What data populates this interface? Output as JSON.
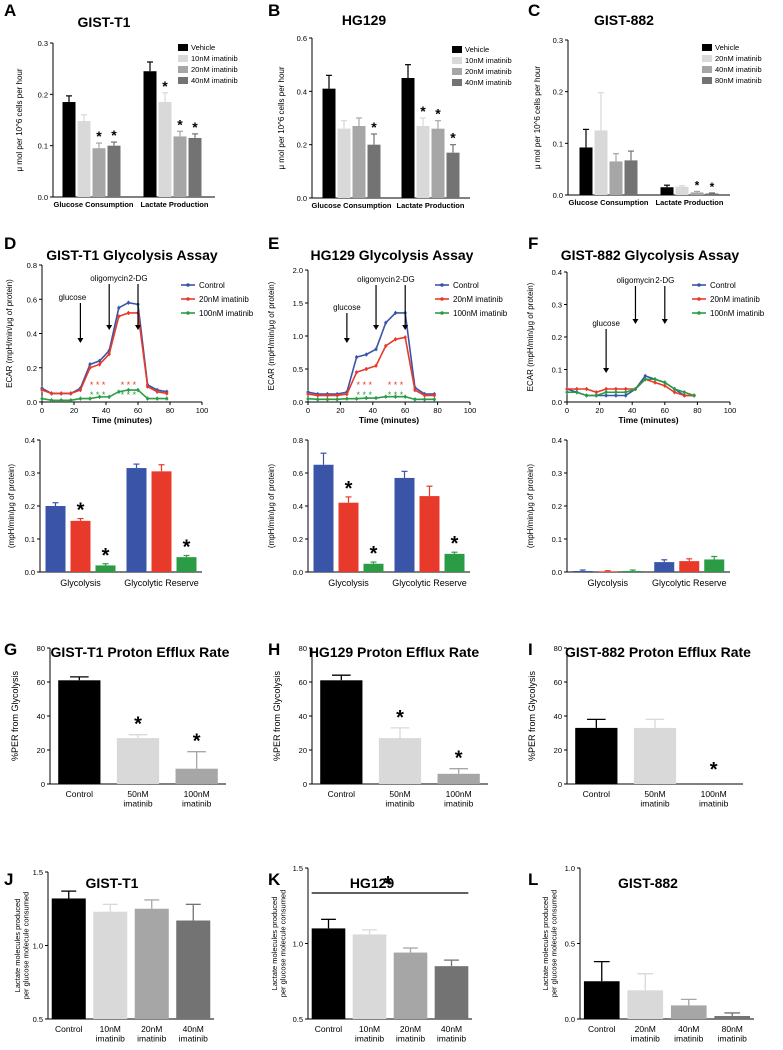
{
  "colors": {
    "black": "#000000",
    "gray1": "#d9d9d9",
    "gray2": "#a6a6a6",
    "gray3": "#737373",
    "blue": "#3a55a8",
    "red": "#e83a2b",
    "green": "#2b9c45"
  },
  "chart_data": [
    {
      "id": "A",
      "type": "bar",
      "title": "GIST-T1",
      "ylabel": "μ mol per 10^6 cells per hour",
      "ylim": [
        0,
        0.3
      ],
      "yticks": [
        "0.0",
        "0.1",
        "0.2",
        "0.3"
      ],
      "categories": [
        "Glucose Consumption",
        "Lactate Production"
      ],
      "series": [
        {
          "name": "Vehicle",
          "values": [
            0.185,
            0.245
          ],
          "err": [
            0.012,
            0.018
          ],
          "sig": [
            false,
            false
          ]
        },
        {
          "name": "10nM imatinib",
          "values": [
            0.148,
            0.185
          ],
          "err": [
            0.012,
            0.018
          ],
          "sig": [
            false,
            true
          ]
        },
        {
          "name": "20nM imatinib",
          "values": [
            0.095,
            0.118
          ],
          "err": [
            0.01,
            0.01
          ],
          "sig": [
            true,
            true
          ]
        },
        {
          "name": "40nM imatinib",
          "values": [
            0.1,
            0.115
          ],
          "err": [
            0.007,
            0.008
          ],
          "sig": [
            true,
            true
          ]
        }
      ]
    },
    {
      "id": "B",
      "type": "bar",
      "title": "HG129",
      "ylabel": "μ mol per 10^6 cells per hour",
      "ylim": [
        0,
        0.6
      ],
      "yticks": [
        "0.0",
        "0.2",
        "0.4",
        "0.6"
      ],
      "categories": [
        "Glucose Consumption",
        "Lactate Production"
      ],
      "series": [
        {
          "name": "Vehicle",
          "values": [
            0.41,
            0.45
          ],
          "err": [
            0.05,
            0.05
          ],
          "sig": [
            false,
            false
          ]
        },
        {
          "name": "10nM imatinib",
          "values": [
            0.26,
            0.27
          ],
          "err": [
            0.03,
            0.03
          ],
          "sig": [
            false,
            true
          ]
        },
        {
          "name": "20nM imatinib",
          "values": [
            0.27,
            0.26
          ],
          "err": [
            0.03,
            0.03
          ],
          "sig": [
            false,
            true
          ]
        },
        {
          "name": "40nM imatinib",
          "values": [
            0.2,
            0.17
          ],
          "err": [
            0.04,
            0.03
          ],
          "sig": [
            true,
            true
          ]
        }
      ]
    },
    {
      "id": "C",
      "type": "bar",
      "title": "GIST-882",
      "ylabel": "μ mol per 10^6 cells per hour",
      "ylim": [
        0,
        0.3
      ],
      "yticks": [
        "0.0",
        "0.1",
        "0.2",
        "0.3"
      ],
      "categories": [
        "Glucose Consumption",
        "Lactate Production"
      ],
      "series": [
        {
          "name": "Vehicle",
          "values": [
            0.092,
            0.015
          ],
          "err": [
            0.035,
            0.004
          ],
          "sig": [
            false,
            false
          ]
        },
        {
          "name": "20nM imatinib",
          "values": [
            0.125,
            0.016
          ],
          "err": [
            0.073,
            0.002
          ],
          "sig": [
            false,
            false
          ]
        },
        {
          "name": "40nM imatinib",
          "values": [
            0.065,
            0.005
          ],
          "err": [
            0.015,
            0.002
          ],
          "sig": [
            false,
            true
          ]
        },
        {
          "name": "80nM imatinib",
          "values": [
            0.067,
            0.003
          ],
          "err": [
            0.018,
            0.001
          ],
          "sig": [
            false,
            true
          ]
        }
      ]
    },
    {
      "id": "D",
      "type": "line",
      "title": "GIST-T1 Glycolysis Assay",
      "xlabel": "Time (minutes)",
      "ylabel": "ECAR (mpH/min/μg of protein)",
      "xlim": [
        0,
        100
      ],
      "xticks": [
        "0",
        "20",
        "40",
        "60",
        "80",
        "100"
      ],
      "ylim": [
        0,
        0.8
      ],
      "yticks": [
        "0.0",
        "0.2",
        "0.4",
        "0.6",
        "0.8"
      ],
      "x": [
        0,
        6,
        12,
        18,
        24,
        30,
        36,
        42,
        48,
        54,
        60,
        66,
        72,
        78
      ],
      "series": [
        {
          "name": "Control",
          "values": [
            0.08,
            0.05,
            0.05,
            0.05,
            0.08,
            0.22,
            0.24,
            0.3,
            0.55,
            0.58,
            0.57,
            0.1,
            0.07,
            0.06
          ]
        },
        {
          "name": "20nM imatinib",
          "values": [
            0.07,
            0.05,
            0.05,
            0.05,
            0.07,
            0.2,
            0.22,
            0.28,
            0.5,
            0.52,
            0.52,
            0.09,
            0.06,
            0.05
          ]
        },
        {
          "name": "100nM imatinib",
          "values": [
            0.02,
            0.01,
            0.01,
            0.01,
            0.02,
            0.02,
            0.03,
            0.03,
            0.06,
            0.07,
            0.07,
            0.02,
            0.02,
            0.02
          ]
        }
      ],
      "annotations": [
        {
          "label": "glucose",
          "x": 24
        },
        {
          "label": "oligomycin",
          "x": 42
        },
        {
          "label": "2-DG",
          "x": 60
        }
      ],
      "stars": [
        "* * *",
        "* * *",
        "* * *"
      ]
    },
    {
      "id": "E",
      "type": "line",
      "title": "HG129 Glycolysis Assay",
      "xlabel": "Time (minutes)",
      "ylabel": "ECAR (mpH/min/μg of protein)",
      "xlim": [
        0,
        100
      ],
      "xticks": [
        "0",
        "20",
        "40",
        "60",
        "80",
        "100"
      ],
      "ylim": [
        0,
        2.0
      ],
      "yticks": [
        "0.0",
        "0.5",
        "1.0",
        "1.5",
        "2.0"
      ],
      "x": [
        0,
        6,
        12,
        18,
        24,
        30,
        36,
        42,
        48,
        54,
        60,
        66,
        72,
        78
      ],
      "series": [
        {
          "name": "Control",
          "values": [
            0.15,
            0.12,
            0.12,
            0.12,
            0.15,
            0.68,
            0.72,
            0.8,
            1.2,
            1.35,
            1.35,
            0.22,
            0.12,
            0.12
          ]
        },
        {
          "name": "20nM imatinib",
          "values": [
            0.12,
            0.1,
            0.1,
            0.1,
            0.12,
            0.45,
            0.5,
            0.55,
            0.85,
            0.95,
            0.98,
            0.18,
            0.1,
            0.1
          ]
        },
        {
          "name": "100nM imatinib",
          "values": [
            0.05,
            0.04,
            0.04,
            0.04,
            0.05,
            0.05,
            0.06,
            0.06,
            0.08,
            0.08,
            0.08,
            0.04,
            0.04,
            0.04
          ]
        }
      ],
      "annotations": [
        {
          "label": "glucose",
          "x": 24
        },
        {
          "label": "oligomycin",
          "x": 42
        },
        {
          "label": "2-DG",
          "x": 60
        }
      ],
      "stars": [
        "* * *",
        "* * *",
        "* * *"
      ]
    },
    {
      "id": "F",
      "type": "line",
      "title": "GIST-882 Glycolysis Assay",
      "xlabel": "Time (minutes)",
      "ylabel": "ECAR (mpH/min/μg of protein)",
      "xlim": [
        0,
        100
      ],
      "xticks": [
        "0",
        "20",
        "40",
        "60",
        "80",
        "100"
      ],
      "ylim": [
        0,
        0.4
      ],
      "yticks": [
        "0.0",
        "0.1",
        "0.2",
        "0.3",
        "0.4"
      ],
      "x": [
        0,
        6,
        12,
        18,
        24,
        30,
        36,
        42,
        48,
        54,
        60,
        66,
        72,
        78
      ],
      "series": [
        {
          "name": "Control",
          "values": [
            0.04,
            0.03,
            0.02,
            0.02,
            0.02,
            0.02,
            0.02,
            0.04,
            0.08,
            0.07,
            0.06,
            0.04,
            0.02,
            0.02
          ]
        },
        {
          "name": "20nM imatinib",
          "values": [
            0.04,
            0.04,
            0.04,
            0.03,
            0.04,
            0.04,
            0.04,
            0.04,
            0.07,
            0.06,
            0.05,
            0.03,
            0.02,
            0.02
          ]
        },
        {
          "name": "100nM imatinib",
          "values": [
            0.03,
            0.03,
            0.02,
            0.02,
            0.03,
            0.03,
            0.03,
            0.04,
            0.07,
            0.07,
            0.06,
            0.04,
            0.03,
            0.02
          ]
        }
      ],
      "annotations": [
        {
          "label": "glucose",
          "x": 24
        },
        {
          "label": "oligomycin",
          "x": 42
        },
        {
          "label": "2-DG",
          "x": 60
        }
      ]
    },
    {
      "id": "D2",
      "type": "bar",
      "ylabel": "(mpH/min/μg of protein)",
      "ylim": [
        0,
        0.4
      ],
      "yticks": [
        "0.0",
        "0.1",
        "0.2",
        "0.3",
        "0.4"
      ],
      "categories": [
        "Glycolysis",
        "Glycolytic Reserve"
      ],
      "series": [
        {
          "name": "Control",
          "values": [
            0.2,
            0.315
          ],
          "err": [
            0.01,
            0.012
          ],
          "sig": [
            false,
            false
          ]
        },
        {
          "name": "20nM imatinib",
          "values": [
            0.155,
            0.305
          ],
          "err": [
            0.007,
            0.02
          ],
          "sig": [
            true,
            false
          ]
        },
        {
          "name": "100nM imatinib",
          "values": [
            0.02,
            0.045
          ],
          "err": [
            0.005,
            0.005
          ],
          "sig": [
            true,
            true
          ]
        }
      ]
    },
    {
      "id": "E2",
      "type": "bar",
      "ylabel": "(mpH/min/μg of protein)",
      "ylim": [
        0,
        0.8
      ],
      "yticks": [
        "0.0",
        "0.2",
        "0.4",
        "0.6",
        "0.8"
      ],
      "categories": [
        "Glycolysis",
        "Glycolytic Reserve"
      ],
      "series": [
        {
          "name": "Control",
          "values": [
            0.65,
            0.57
          ],
          "err": [
            0.07,
            0.04
          ],
          "sig": [
            false,
            false
          ]
        },
        {
          "name": "20nM imatinib",
          "values": [
            0.42,
            0.46
          ],
          "err": [
            0.035,
            0.06
          ],
          "sig": [
            true,
            false
          ]
        },
        {
          "name": "100nM imatinib",
          "values": [
            0.05,
            0.11
          ],
          "err": [
            0.01,
            0.01
          ],
          "sig": [
            true,
            true
          ]
        }
      ]
    },
    {
      "id": "F2",
      "type": "bar",
      "ylabel": "(mpH/min/μg of protein)",
      "ylim": [
        0,
        0.4
      ],
      "yticks": [
        "0.0",
        "0.1",
        "0.2",
        "0.3",
        "0.4"
      ],
      "categories": [
        "Glycolysis",
        "Glycolytic Reserve"
      ],
      "series": [
        {
          "name": "Control",
          "values": [
            0.003,
            0.03
          ],
          "err": [
            0.003,
            0.007
          ],
          "sig": [
            false,
            false
          ]
        },
        {
          "name": "20nM imatinib",
          "values": [
            0.002,
            0.033
          ],
          "err": [
            0.002,
            0.007
          ],
          "sig": [
            false,
            false
          ]
        },
        {
          "name": "100nM imatinib",
          "values": [
            0.003,
            0.038
          ],
          "err": [
            0.003,
            0.009
          ],
          "sig": [
            false,
            false
          ]
        }
      ]
    },
    {
      "id": "G",
      "type": "bar",
      "title": "GIST-T1 Proton Efflux Rate",
      "ylabel": "%PER from Glycolysis",
      "ylim": [
        0,
        80
      ],
      "yticks": [
        "0",
        "20",
        "40",
        "60",
        "80"
      ],
      "categories": [
        "Control",
        "50nM\nimatinib",
        "100nM\nimatinib"
      ],
      "values": [
        61,
        27,
        9
      ],
      "err": [
        2,
        2,
        10
      ],
      "sig": [
        false,
        true,
        true
      ]
    },
    {
      "id": "H",
      "type": "bar",
      "title": "HG129 Proton Efflux Rate",
      "ylabel": "%PER from Glycolysis",
      "ylim": [
        0,
        80
      ],
      "yticks": [
        "0",
        "20",
        "40",
        "60",
        "80"
      ],
      "categories": [
        "Control",
        "50nM\nimatinib",
        "100nM\nimatinib"
      ],
      "values": [
        61,
        27,
        6
      ],
      "err": [
        3,
        6,
        3
      ],
      "sig": [
        false,
        true,
        true
      ]
    },
    {
      "id": "I",
      "type": "bar",
      "title": "GIST-882 Proton Efflux Rate",
      "ylabel": "%PER from Glycolysis",
      "ylim": [
        0,
        80
      ],
      "yticks": [
        "0",
        "20",
        "40",
        "60",
        "80"
      ],
      "categories": [
        "Control",
        "50nM\nimatinib",
        "100nM\nimatinib"
      ],
      "values": [
        33,
        33,
        0
      ],
      "err": [
        5,
        5,
        0
      ],
      "sig": [
        false,
        false,
        true
      ]
    },
    {
      "id": "J",
      "type": "bar",
      "title": "GIST-T1",
      "ylabel": "Lactate molecules produced\nper glucose molecule consumed",
      "ylim": [
        0.5,
        1.5
      ],
      "ybase": 0.5,
      "yticks": [
        "0.5",
        "1.0",
        "1.5"
      ],
      "categories": [
        "Control",
        "10nM\nimatinib",
        "20nM\nimatinib",
        "40nM\nimatinib"
      ],
      "values": [
        1.32,
        1.23,
        1.25,
        1.17
      ],
      "err": [
        0.05,
        0.05,
        0.06,
        0.11
      ],
      "sig": [
        false,
        false,
        false,
        false
      ]
    },
    {
      "id": "K",
      "type": "bar",
      "title": "HG129",
      "ylabel": "Lactate molecules produced\nper glucose molecule consumed",
      "ylim": [
        0.5,
        1.5
      ],
      "ybase": 0.5,
      "yticks": [
        "0.5",
        "1.0",
        "1.5"
      ],
      "categories": [
        "Control",
        "10nM\nimatinib",
        "20nM\nimatinib",
        "40nM\nimatinib"
      ],
      "values": [
        1.1,
        1.06,
        0.94,
        0.85
      ],
      "err": [
        0.06,
        0.03,
        0.03,
        0.04
      ],
      "sig": [
        false,
        false,
        false,
        false
      ],
      "bracket_label": "*"
    },
    {
      "id": "L",
      "type": "bar",
      "title": "GIST-882",
      "ylabel": "Lactate molecules produced\nper glucose molecule consumed",
      "ylim": [
        0,
        1.0
      ],
      "ybase": 0,
      "yticks": [
        "0.0",
        "0.5",
        "1.0"
      ],
      "categories": [
        "Control",
        "20nM\nimatinib",
        "40nM\nimatinib",
        "80nM\nimatinib"
      ],
      "values": [
        0.25,
        0.19,
        0.09,
        0.02
      ],
      "err": [
        0.13,
        0.11,
        0.04,
        0.02
      ],
      "sig": [
        false,
        false,
        false,
        false
      ]
    }
  ]
}
